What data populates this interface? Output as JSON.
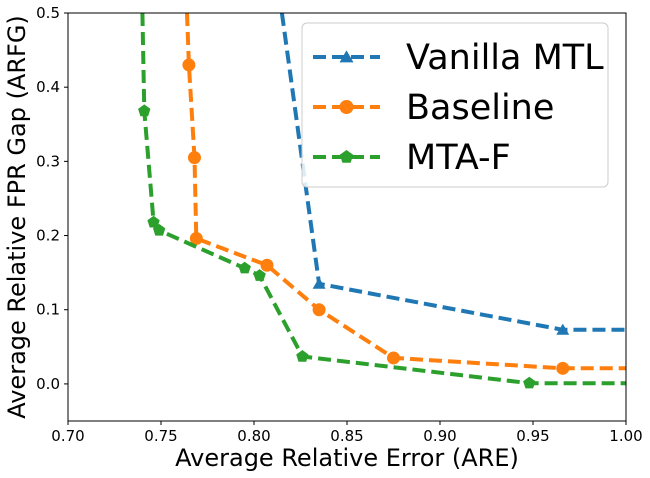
{
  "chart_data": {
    "type": "line",
    "title": "",
    "xlabel": "Average Relative Error (ARE)",
    "ylabel": "Average Relative FPR Gap (ARFG)",
    "xlim": [
      0.7,
      1.0
    ],
    "ylim": [
      -0.05,
      0.5
    ],
    "x_ticks": [
      0.7,
      0.75,
      0.8,
      0.85,
      0.9,
      0.95,
      1.0
    ],
    "x_tick_labels": [
      "0.70",
      "0.75",
      "0.80",
      "0.85",
      "0.90",
      "0.95",
      "1.00"
    ],
    "y_ticks": [
      0.0,
      0.1,
      0.2,
      0.3,
      0.4,
      0.5
    ],
    "y_tick_labels": [
      "0.0",
      "0.1",
      "0.2",
      "0.3",
      "0.4",
      "0.5"
    ],
    "grid": false,
    "legend_position": "top-right",
    "series": [
      {
        "name": "Vanilla MTL",
        "color": "#1f77b4",
        "marker": "triangle",
        "x": [
          0.815,
          0.835,
          0.966,
          1.0
        ],
        "y": [
          0.5,
          0.135,
          0.073,
          0.073
        ],
        "marker_points": [
          [
            0.835,
            0.135
          ],
          [
            0.966,
            0.073
          ]
        ]
      },
      {
        "name": "Baseline",
        "color": "#ff7f0e",
        "marker": "circle",
        "x": [
          0.764,
          0.765,
          0.768,
          0.769,
          0.807,
          0.835,
          0.875,
          0.966,
          1.0
        ],
        "y": [
          0.5,
          0.43,
          0.305,
          0.196,
          0.16,
          0.1,
          0.035,
          0.021,
          0.021
        ],
        "marker_points": [
          [
            0.765,
            0.43
          ],
          [
            0.768,
            0.305
          ],
          [
            0.769,
            0.196
          ],
          [
            0.807,
            0.16
          ],
          [
            0.835,
            0.1
          ],
          [
            0.875,
            0.035
          ],
          [
            0.966,
            0.021
          ]
        ]
      },
      {
        "name": "MTA-F",
        "color": "#2ca02c",
        "marker": "pentagon",
        "x": [
          0.74,
          0.741,
          0.746,
          0.749,
          0.795,
          0.803,
          0.826,
          0.948,
          1.0
        ],
        "y": [
          0.5,
          0.368,
          0.218,
          0.207,
          0.156,
          0.146,
          0.037,
          0.001,
          0.001
        ],
        "marker_points": [
          [
            0.741,
            0.368
          ],
          [
            0.746,
            0.218
          ],
          [
            0.749,
            0.207
          ],
          [
            0.795,
            0.156
          ],
          [
            0.803,
            0.146
          ],
          [
            0.826,
            0.037
          ],
          [
            0.948,
            0.001
          ]
        ]
      }
    ]
  }
}
